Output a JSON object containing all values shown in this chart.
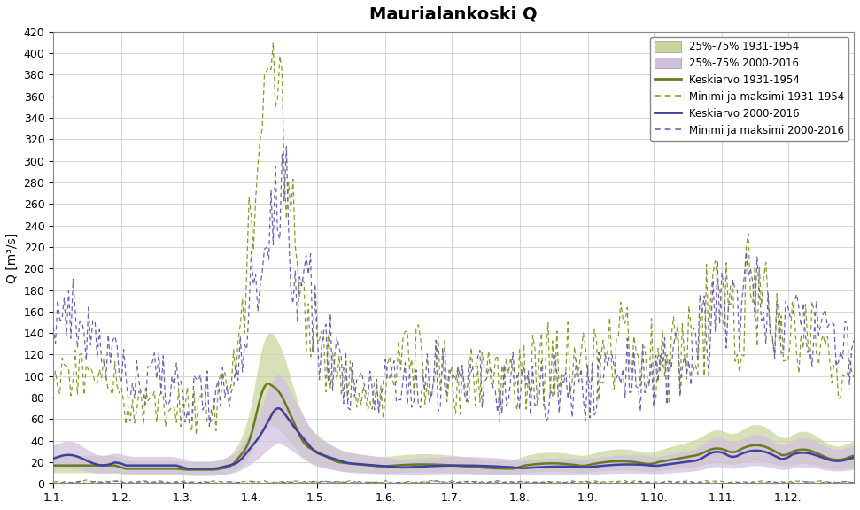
{
  "title": "Maurialankoski Q",
  "ylabel": "Q [m³/s]",
  "xlim": [
    1,
    365
  ],
  "ylim": [
    0,
    420
  ],
  "yticks": [
    0,
    20,
    40,
    60,
    80,
    100,
    120,
    140,
    160,
    180,
    200,
    220,
    240,
    260,
    280,
    300,
    320,
    340,
    360,
    380,
    400,
    420
  ],
  "month_starts": [
    1,
    32,
    60,
    91,
    121,
    152,
    182,
    213,
    244,
    274,
    305,
    335
  ],
  "month_labels": [
    "1.1.",
    "1.2.",
    "1.3.",
    "1.4.",
    "1.5.",
    "1.6.",
    "1.7.",
    "1.8.",
    "1.9.",
    "1.10.",
    "1.11.",
    "1.12."
  ],
  "color_1931_fill": "#c8d49a",
  "color_2000_fill": "#d0c0e0",
  "color_1931_mean": "#6b7a20",
  "color_1931_minmax": "#8a9a30",
  "color_2000_mean": "#4040a0",
  "color_2000_minmax": "#7060b0",
  "legend_labels": [
    "25%-75% 1931-1954",
    "25%-75% 2000-2016",
    "Keskiarvo 1931-1954",
    "Minimi ja maksimi 1931-1954",
    "Keskiarvo 2000-2016",
    "Minimi ja maksimi 2000-2016"
  ],
  "figsize": [
    9.71,
    5.76
  ],
  "dpi": 100
}
